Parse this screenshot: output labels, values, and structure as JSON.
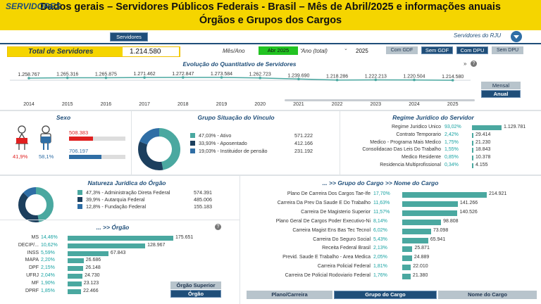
{
  "header": {
    "line1": "Dados gerais – Servidores Públicos Federais - Brasil – Mês de Abril/2025 e informações anuais",
    "line2": "Órgãos e Grupos dos Cargos"
  },
  "nav": {
    "title": "SERVIDORES",
    "tab": "Servidores",
    "brand": "Servidores do RJU"
  },
  "kpi": {
    "label": "Total de Servidores",
    "value": "1.214.580"
  },
  "filters": {
    "month_label": "Mês/Ano",
    "month_value": "Abr 2025",
    "year_label": "Ano (total)",
    "year_value": "2025",
    "buttons": [
      "Com GDF",
      "Sem GDF",
      "Com DPU",
      "Sem DPU"
    ]
  },
  "evolution": {
    "title": "Evolução do Quantitativo de Servidores",
    "years": [
      "2014",
      "2015",
      "2016",
      "2017",
      "2018",
      "2019",
      "2020",
      "2021",
      "2022",
      "2023",
      "2024",
      "2025"
    ],
    "values": [
      "1.258.767",
      "1.265.316",
      "1.265.875",
      "1.271.462",
      "1.272.847",
      "1.273.584",
      "1.262.723",
      "1.239.690",
      "1.218.286",
      "1.222.213",
      "1.220.504",
      "1.214.580"
    ],
    "nums": [
      1258767,
      1265316,
      1265875,
      1271462,
      1272847,
      1273584,
      1262723,
      1239690,
      1218286,
      1222213,
      1220504,
      1214580
    ],
    "toggle": [
      "Mensal",
      "Anual"
    ]
  },
  "sexo": {
    "title": "Sexo",
    "female_value": "508.383",
    "female_pct": "41,9%",
    "male_value": "706.197",
    "male_pct": "58,1%",
    "female_frac": 0.419,
    "male_frac": 0.581
  },
  "vinculo": {
    "title": "Grupo Situação do Vínculo",
    "items": [
      {
        "label": "47,03% - Ativo",
        "value": "571.222",
        "frac": 0.4703,
        "color": "#4aa8a0"
      },
      {
        "label": "33,93% - Aposentado",
        "value": "412.166",
        "frac": 0.3393,
        "color": "#1c3f5e"
      },
      {
        "label": "19,03% - Instituidor de pensão",
        "value": "231.192",
        "frac": 0.1903,
        "color": "#2f6ea5"
      }
    ]
  },
  "regime": {
    "title": "Regime Jurídico do Servidor",
    "rows": [
      {
        "label": "Regime Juridico Unico",
        "pct": "93,02%",
        "value": "1.129.781",
        "num": 1129781
      },
      {
        "label": "Contrato Temporario",
        "pct": "2,42%",
        "value": "29.414",
        "num": 29414
      },
      {
        "label": "Medico - Programa Mais Medico",
        "pct": "1,75%",
        "value": "21.230",
        "num": 21230
      },
      {
        "label": "Consolidacao Das Leis Do Trabalho",
        "pct": "1,55%",
        "value": "18.843",
        "num": 18843
      },
      {
        "label": "Medico Residente",
        "pct": "0,85%",
        "value": "10.378",
        "num": 10378
      },
      {
        "label": "Residencia Multiprofissional",
        "pct": "0,34%",
        "value": "4.155",
        "num": 4155
      }
    ]
  },
  "natureza": {
    "title": "Natureza Jurídica do Órgão",
    "items": [
      {
        "label": "47,3% - Administração Direta Federal",
        "value": "574.391",
        "frac": 0.473,
        "color": "#4aa8a0"
      },
      {
        "label": "39,9% - Autarquia Federal",
        "value": "485.006",
        "frac": 0.399,
        "color": "#1c3f5e"
      },
      {
        "label": "12,8% - Fundação Federal",
        "value": "155.183",
        "frac": 0.128,
        "color": "#2f6ea5"
      }
    ]
  },
  "orgao": {
    "title": "... >> Órgão",
    "rows": [
      {
        "label": "MS",
        "pct": "14,46%",
        "value": "175.651",
        "num": 175651
      },
      {
        "label": "DECIP/...",
        "pct": "10,62%",
        "value": "128.967",
        "num": 128967
      },
      {
        "label": "INSS",
        "pct": "5,59%",
        "value": "67.843",
        "num": 67843
      },
      {
        "label": "MAPA",
        "pct": "2,20%",
        "value": "26.686",
        "num": 26686
      },
      {
        "label": "DPF",
        "pct": "2,15%",
        "value": "26.148",
        "num": 26148
      },
      {
        "label": "UFRJ",
        "pct": "2,04%",
        "value": "24.730",
        "num": 24730
      },
      {
        "label": "MF",
        "pct": "1,90%",
        "value": "23.123",
        "num": 23123
      },
      {
        "label": "DPRF",
        "pct": "1,85%",
        "value": "22.466",
        "num": 22466
      }
    ],
    "btn_superior": "Órgão Superior",
    "btn_orgao": "Órgão"
  },
  "grupo": {
    "title": "... >> Grupo do Cargo >> Nome do Cargo",
    "rows": [
      {
        "label": "Plano De Carreira Dos Cargos Tae-Ife",
        "pct": "17,70%",
        "value": "214.921",
        "num": 214921
      },
      {
        "label": "Carreira Da Prev Da Saude E Do Trabalho",
        "pct": "11,63%",
        "value": "141.266",
        "num": 141266
      },
      {
        "label": "Carreira De Magisterio Superior",
        "pct": "11,57%",
        "value": "140.526",
        "num": 140526
      },
      {
        "label": "Plano Geral De Cargos Poder Executivo-Ni",
        "pct": "8,14%",
        "value": "98.808",
        "num": 98808
      },
      {
        "label": "Carreira Magist Ens Bas Tec Tecnol",
        "pct": "6,02%",
        "value": "73.098",
        "num": 73098
      },
      {
        "label": "Carreira Do Seguro Social",
        "pct": "5,43%",
        "value": "65.941",
        "num": 65941
      },
      {
        "label": "Receita Federal Brasil",
        "pct": "2,13%",
        "value": "25.871",
        "num": 25871
      },
      {
        "label": "Previd. Saude E Trabalho - Area Medica",
        "pct": "2,05%",
        "value": "24.889",
        "num": 24889
      },
      {
        "label": "Carreira Policial Federal",
        "pct": "1,81%",
        "value": "22.010",
        "num": 22010
      },
      {
        "label": "Carreira De Policial Rodoviario Federal",
        "pct": "1,76%",
        "value": "21.380",
        "num": 21380
      }
    ],
    "tabs": [
      "Plano/Carreira",
      "Grupo do Cargo",
      "Nome do Cargo"
    ]
  }
}
